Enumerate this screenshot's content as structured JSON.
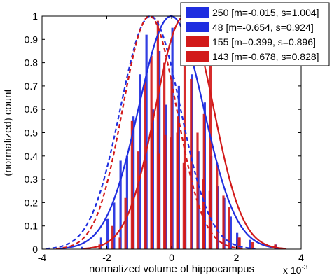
{
  "chart_data": {
    "type": "bar",
    "xlabel": "normalized volume of hippocampus",
    "ylabel": "(normalized) count",
    "x_multiplier": "x 10",
    "x_multiplier_exp": "-3",
    "xlim": [
      -4,
      4
    ],
    "ylim": [
      0,
      1
    ],
    "xticks": [
      "-4",
      "-2",
      "0",
      "2",
      "4"
    ],
    "yticks": [
      "0",
      "0.1",
      "0.2",
      "0.3",
      "0.4",
      "0.5",
      "0.6",
      "0.7",
      "0.8",
      "0.9",
      "1"
    ],
    "legend_position": "top-right",
    "series": [
      {
        "name": "250 [m=-0.015, s=1.004]",
        "color": "#1f2ee0",
        "curve_style": "solid",
        "mean": -0.015,
        "sd": 1.004,
        "bar_x": [
          -2.7,
          -2.1,
          -1.9,
          -1.7,
          -1.5,
          -1.3,
          -1.1,
          -0.9,
          -0.7,
          -0.5,
          -0.3,
          -0.1,
          0.1,
          0.3,
          0.5,
          0.7,
          0.9,
          1.1,
          1.3,
          1.5,
          1.7,
          1.9,
          2.1,
          2.5,
          3.3
        ],
        "bar_y": [
          0.01,
          0.05,
          0.13,
          0.2,
          0.38,
          0.4,
          0.57,
          0.75,
          0.92,
          0.6,
          0.85,
          0.62,
          0.95,
          0.7,
          0.35,
          0.75,
          0.42,
          0.63,
          0.4,
          0.27,
          0.22,
          0.14,
          0.07,
          0.04,
          0.02
        ]
      },
      {
        "name": "48 [m=-0.654, s=0.924]",
        "color": "#1f2ee0",
        "curve_style": "dashed",
        "mean": -0.654,
        "sd": 0.924
      },
      {
        "name": "155 [m=0.399, s=0.896]",
        "color": "#d21a1a",
        "curve_style": "solid",
        "mean": 0.399,
        "sd": 0.896,
        "bar_x": [
          -1.6,
          -1.2,
          -0.8,
          -0.6,
          -0.4,
          -0.2,
          0.0,
          0.2,
          0.4,
          0.6,
          0.8,
          1.0,
          1.2,
          1.4,
          1.6,
          2.1,
          2.5,
          3.2
        ],
        "bar_y": [
          0.05,
          0.2,
          0.38,
          0.54,
          0.41,
          0.49,
          0.73,
          0.57,
          0.8,
          0.73,
          0.5,
          0.58,
          0.86,
          0.37,
          0.23,
          0.05,
          0.03,
          0.02
        ]
      },
      {
        "name": "143 [m=-0.678, s=0.828]",
        "color": "#d21a1a",
        "curve_style": "dashed",
        "mean": -0.678,
        "sd": 0.828,
        "bar_x": [
          -2.3,
          -1.9,
          -1.5,
          -1.3,
          -1.1,
          -0.9,
          -0.7,
          -0.5,
          -0.3,
          -0.1,
          0.1,
          0.3,
          0.9,
          1.1,
          1.7,
          2.0
        ],
        "bar_y": [
          0.02,
          0.1,
          0.22,
          0.55,
          0.42,
          0.72,
          0.83,
          0.98,
          0.8,
          0.48,
          0.5,
          0.37,
          0.3,
          0.25,
          0.18,
          0.05
        ]
      }
    ]
  }
}
